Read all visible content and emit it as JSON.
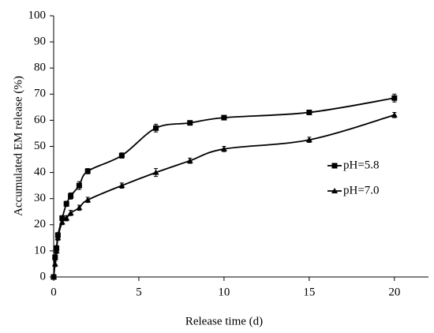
{
  "chart_data": {
    "type": "line",
    "xlabel": "Release time (d)",
    "ylabel": "Accumulated EM release (%)",
    "xlim": [
      0,
      22
    ],
    "xticks": [
      0,
      5,
      10,
      15,
      20
    ],
    "ylim": [
      0,
      100
    ],
    "yticks": [
      0,
      10,
      20,
      30,
      40,
      50,
      60,
      70,
      80,
      90,
      100
    ],
    "grid": false,
    "legend": "right",
    "series": [
      {
        "name": "pH=5.8",
        "color": "#000000",
        "marker": "square",
        "x": [
          0,
          0.083,
          0.167,
          0.25,
          0.5,
          0.75,
          1,
          1.5,
          2,
          4,
          6,
          8,
          10,
          15,
          20
        ],
        "values": [
          0,
          7.5,
          11,
          16,
          22.5,
          28,
          31,
          35,
          40.5,
          46.5,
          57,
          59,
          61,
          63,
          68.5
        ],
        "errors": [
          0,
          1,
          1,
          1,
          1,
          1,
          1.2,
          1.5,
          1,
          1,
          1.5,
          0.8,
          0.8,
          0.8,
          1.5
        ]
      },
      {
        "name": "pH=7.0",
        "color": "#000000",
        "marker": "triangle",
        "x": [
          0,
          0.083,
          0.167,
          0.25,
          0.5,
          0.75,
          1,
          1.5,
          2,
          4,
          6,
          8,
          10,
          15,
          20
        ],
        "values": [
          0,
          5,
          10,
          15,
          21,
          22.5,
          24.5,
          26.5,
          29.5,
          35,
          40,
          44.5,
          49,
          52.5,
          62
        ],
        "errors": [
          0,
          1,
          1,
          1,
          1,
          1,
          1,
          1,
          1,
          1,
          1.5,
          1,
          1,
          1,
          1
        ]
      }
    ]
  }
}
